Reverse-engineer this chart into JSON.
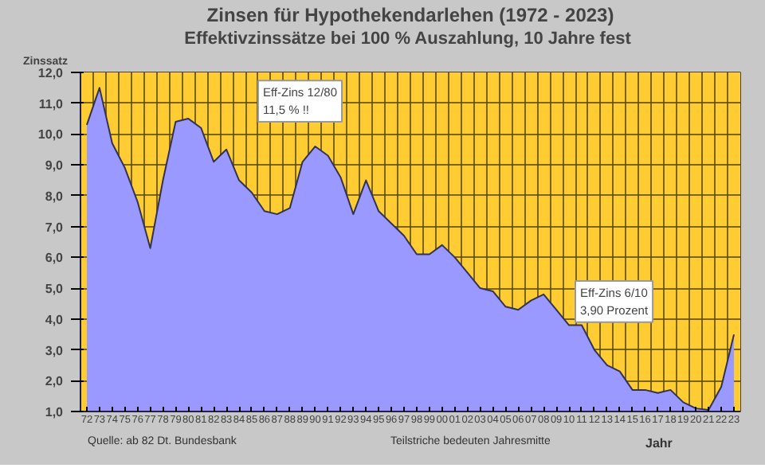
{
  "chart_data": {
    "type": "area",
    "title": "Zinsen für Hypothekendarlehen (1972 - 2023)",
    "subtitle": "Effektivzinssätze bei 100 % Auszahlung,  10 Jahre fest",
    "ylabel": "Zinssatz",
    "xlabel": "Jahr",
    "categories": [
      "72",
      "73",
      "74",
      "75",
      "76",
      "77",
      "78",
      "79",
      "80",
      "81",
      "82",
      "83",
      "84",
      "85",
      "86",
      "87",
      "88",
      "89",
      "90",
      "91",
      "92",
      "93",
      "94",
      "95",
      "96",
      "97",
      "98",
      "99",
      "00",
      "01",
      "02",
      "03",
      "04",
      "05",
      "06",
      "07",
      "08",
      "09",
      "10",
      "11",
      "12",
      "13",
      "14",
      "15",
      "16",
      "17",
      "18",
      "19",
      "20",
      "21",
      "22",
      "23"
    ],
    "series": [
      {
        "color": "#9999ff",
        "values": [
          10.3,
          11.5,
          9.7,
          8.9,
          7.8,
          6.3,
          8.5,
          10.4,
          10.5,
          10.2,
          9.1,
          9.5,
          8.5,
          8.1,
          7.5,
          7.4,
          7.6,
          9.1,
          9.6,
          9.3,
          8.6,
          7.4,
          8.5,
          7.5,
          7.1,
          6.7,
          6.1,
          6.1,
          6.4,
          6.0,
          5.5,
          5.0,
          4.9,
          4.4,
          4.3,
          4.6,
          4.8,
          4.3,
          3.8,
          3.8,
          3.0,
          2.5,
          2.3,
          1.7,
          1.7,
          1.6,
          1.7,
          1.3,
          1.1,
          1.05,
          1.8,
          3.5
        ]
      }
    ],
    "ylim": [
      1.0,
      12.0
    ],
    "yticks": [
      {
        "value": 1.0,
        "label": "1,0"
      },
      {
        "value": 2.0,
        "label": "2,0"
      },
      {
        "value": 3.0,
        "label": "3,0"
      },
      {
        "value": 4.0,
        "label": "4,0"
      },
      {
        "value": 5.0,
        "label": "5,0"
      },
      {
        "value": 6.0,
        "label": "6,0"
      },
      {
        "value": 7.0,
        "label": "7,0"
      },
      {
        "value": 8.0,
        "label": "8,0"
      },
      {
        "value": 9.0,
        "label": "9,0"
      },
      {
        "value": 10.0,
        "label": "10,0"
      },
      {
        "value": 11.0,
        "label": "11,0"
      },
      {
        "value": 12.0,
        "label": "12,0"
      }
    ],
    "grid": true,
    "bands": [
      {
        "axis": "y",
        "from": 1.0,
        "to": 12.0,
        "color": "#ffcc33"
      }
    ],
    "annotations": [
      "Eff-Zins 12/80\n11,5 %  !!",
      "Eff-Zins 6/10\n3,90 Prozent",
      "Quelle: ab 82 Dt. Bundesbank",
      "Teilstriche bedeuten Jahresmitte"
    ]
  }
}
